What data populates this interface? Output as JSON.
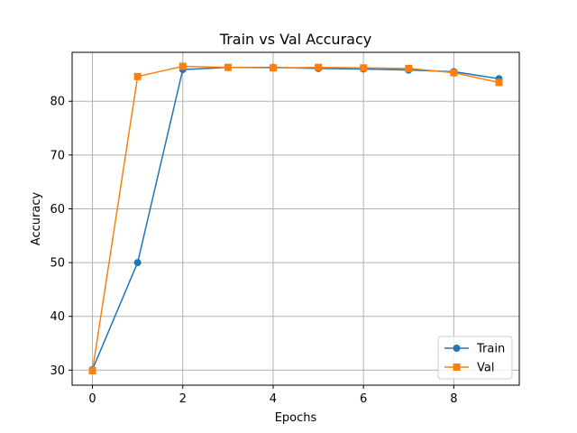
{
  "chart_data": {
    "type": "line",
    "title": "Train vs Val Accuracy",
    "xlabel": "Epochs",
    "ylabel": "Accuracy",
    "x": [
      0,
      1,
      2,
      3,
      4,
      5,
      6,
      7,
      8,
      9
    ],
    "xlim": [
      -0.45,
      9.45
    ],
    "ylim": [
      27.2,
      89.1
    ],
    "xticks": [
      0,
      2,
      4,
      6,
      8
    ],
    "yticks": [
      30,
      40,
      50,
      60,
      70,
      80
    ],
    "grid": true,
    "legend_position": "lower-right",
    "series": [
      {
        "name": "Train",
        "color": "#1f77b4",
        "marker": "circle",
        "values": [
          30.1,
          50.0,
          85.9,
          86.3,
          86.3,
          86.1,
          86.0,
          85.8,
          85.5,
          84.2
        ]
      },
      {
        "name": "Val",
        "color": "#ff7f0e",
        "marker": "square",
        "values": [
          29.9,
          84.6,
          86.5,
          86.3,
          86.2,
          86.3,
          86.2,
          86.1,
          85.3,
          83.5
        ]
      }
    ]
  }
}
